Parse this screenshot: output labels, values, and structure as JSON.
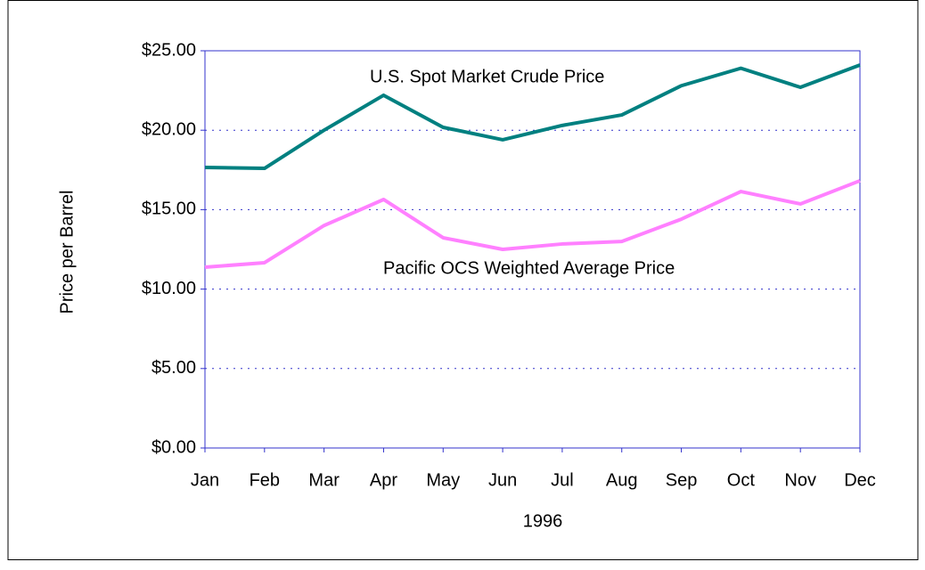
{
  "chart_data": {
    "type": "line",
    "x_label": "1996",
    "y_label": "Price per Barrel",
    "categories": [
      "Jan",
      "Feb",
      "Mar",
      "Apr",
      "May",
      "Jun",
      "Jul",
      "Aug",
      "Sep",
      "Oct",
      "Nov",
      "Dec"
    ],
    "series": [
      {
        "name": "U.S. Spot Market Crude Price",
        "color": "#008080",
        "values": [
          17.66,
          17.6,
          20.0,
          22.2,
          20.18,
          19.4,
          20.3,
          20.96,
          22.8,
          23.9,
          22.7,
          24.1
        ]
      },
      {
        "name": "Pacific OCS Weighted Average Price",
        "color": "#ff80ff",
        "values": [
          11.38,
          11.66,
          14.0,
          15.64,
          13.23,
          12.5,
          12.84,
          13.0,
          14.4,
          16.14,
          15.36,
          16.82
        ]
      }
    ],
    "ylim": [
      0,
      25
    ],
    "yticks": [
      {
        "value": 0,
        "label": "$0.00"
      },
      {
        "value": 5,
        "label": "$5.00"
      },
      {
        "value": 10,
        "label": "$10.00"
      },
      {
        "value": 15,
        "label": "$15.00"
      },
      {
        "value": 20,
        "label": "$20.00"
      },
      {
        "value": 25,
        "label": "$25.00"
      }
    ],
    "grid": true
  }
}
